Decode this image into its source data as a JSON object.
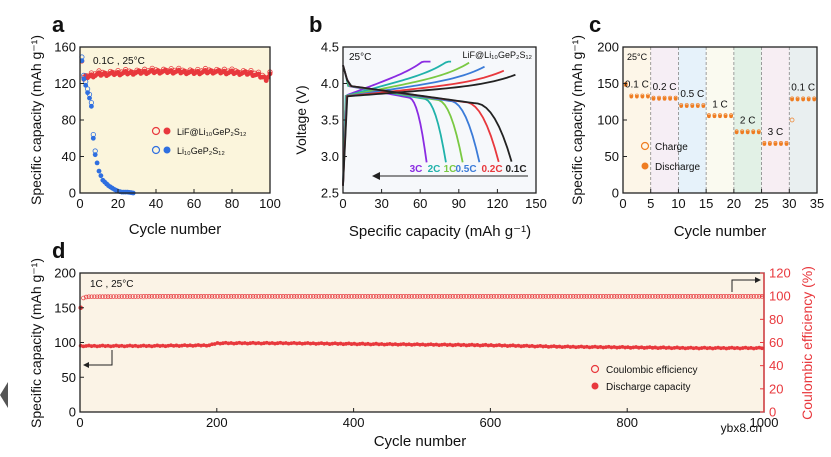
{
  "colors": {
    "red": "#e8383d",
    "blue": "#2f6fe0",
    "orange": "#ef7d22",
    "axis": "#222222",
    "ce_axis": "#e8383d"
  },
  "watermark": "ybx8.cn",
  "chart_data": [
    {
      "panel": "a",
      "type": "scatter",
      "xlabel": "Cycle number",
      "ylabel": "Specific capacity (mAh g⁻¹)",
      "xlim": [
        0,
        100
      ],
      "ylim": [
        0,
        160
      ],
      "xticks": [
        0,
        20,
        40,
        60,
        80,
        100
      ],
      "yticks": [
        0,
        40,
        80,
        120,
        160
      ],
      "annotation": "0.1C , 25°C",
      "legend": [
        "LiF@Li₁₀GeP₂S₁₂",
        "Li₁₀GeP₂S₁₂"
      ],
      "series": [
        {
          "name": "LiF@Li10GeP2S12",
          "color": "red",
          "x": [
            1,
            2,
            3,
            5,
            10,
            20,
            30,
            40,
            50,
            60,
            70,
            80,
            90,
            95,
            98,
            100
          ],
          "y": [
            145,
            124,
            127,
            128,
            130,
            131,
            132,
            133,
            133,
            132,
            133,
            132,
            131,
            128,
            125,
            130
          ]
        },
        {
          "name": "Li10GeP2S12",
          "color": "blue",
          "x": [
            1,
            2,
            3,
            4,
            5,
            6,
            7,
            8,
            10,
            12,
            15,
            18,
            20,
            22,
            25,
            28
          ],
          "y": [
            145,
            125,
            118,
            110,
            104,
            95,
            60,
            42,
            24,
            14,
            8,
            4,
            2,
            1,
            1,
            0
          ]
        }
      ]
    },
    {
      "panel": "b",
      "type": "line",
      "xlabel": "Specific capacity (mAh g⁻¹)",
      "ylabel": "Voltage (V)",
      "xlim": [
        0,
        150
      ],
      "ylim": [
        2.5,
        4.5
      ],
      "xticks": [
        0,
        30,
        60,
        90,
        120,
        150
      ],
      "yticks": [
        2.5,
        3.0,
        3.5,
        4.0,
        4.5
      ],
      "annotation_left": "25°C",
      "annotation_right": "LiF@Li₁₀GeP₂S₁₂",
      "series": [
        {
          "name": "3C",
          "color": "#8a2be2",
          "discharge_end": 65,
          "charge_end": 68
        },
        {
          "name": "2C",
          "color": "#20b2aa",
          "discharge_end": 80,
          "charge_end": 84
        },
        {
          "name": "1C",
          "color": "#7ac943",
          "discharge_end": 93,
          "charge_end": 98
        },
        {
          "name": "0.5C",
          "color": "#3b7bd8",
          "discharge_end": 106,
          "charge_end": 110
        },
        {
          "name": "0.2C",
          "color": "#e8383d",
          "discharge_end": 121,
          "charge_end": 125
        },
        {
          "name": "0.1C",
          "color": "#222222",
          "discharge_end": 131,
          "charge_end": 134
        }
      ]
    },
    {
      "panel": "c",
      "type": "scatter",
      "xlabel": "Cycle number",
      "ylabel": "Specific capacity (mAh g⁻¹)",
      "xlim": [
        0,
        35
      ],
      "ylim": [
        0,
        200
      ],
      "xticks": [
        0,
        5,
        10,
        15,
        20,
        25,
        30,
        35
      ],
      "yticks": [
        0,
        50,
        100,
        150,
        200
      ],
      "annotation": "25°C",
      "legend": [
        "Charge",
        "Discharge"
      ],
      "rates": [
        {
          "label": "0.1 C",
          "start": 1,
          "end": 5,
          "value": 132
        },
        {
          "label": "0.2 C",
          "start": 6,
          "end": 10,
          "value": 129
        },
        {
          "label": "0.5 C",
          "start": 11,
          "end": 15,
          "value": 119
        },
        {
          "label": "1 C",
          "start": 16,
          "end": 20,
          "value": 105
        },
        {
          "label": "2 C",
          "start": 21,
          "end": 25,
          "value": 83
        },
        {
          "label": "3 C",
          "start": 26,
          "end": 30,
          "value": 67
        },
        {
          "label": "0.1 C",
          "start": 31,
          "end": 35,
          "value": 128
        }
      ]
    },
    {
      "panel": "d",
      "type": "scatter",
      "xlabel": "Cycle number",
      "ylabel": "Specific capacity (mAh g⁻¹)",
      "y2label": "Coulombic efficiency (%)",
      "xlim": [
        0,
        1000
      ],
      "ylim": [
        0,
        200
      ],
      "y2lim": [
        0,
        120
      ],
      "xticks": [
        0,
        200,
        400,
        600,
        800,
        1000
      ],
      "yticks": [
        0,
        50,
        100,
        150,
        200
      ],
      "y2ticks": [
        0,
        20,
        40,
        60,
        80,
        100,
        120
      ],
      "annotation": "1C , 25°C",
      "legend": [
        "Coulombic efficiency",
        "Discharge capacity"
      ],
      "discharge_capacity": {
        "x": [
          1,
          50,
          100,
          190,
          200,
          300,
          400,
          500,
          600,
          700,
          800,
          900,
          1000
        ],
        "y": [
          95,
          95,
          95,
          96,
          99,
          99,
          98,
          97,
          96,
          94,
          93,
          92,
          92
        ]
      },
      "coulombic_efficiency": {
        "x": [
          1,
          3,
          10,
          100,
          300,
          500,
          700,
          900,
          1000
        ],
        "y": [
          90,
          98,
          99.5,
          99.8,
          99.8,
          99.8,
          99.8,
          99.8,
          99.8
        ]
      }
    }
  ]
}
